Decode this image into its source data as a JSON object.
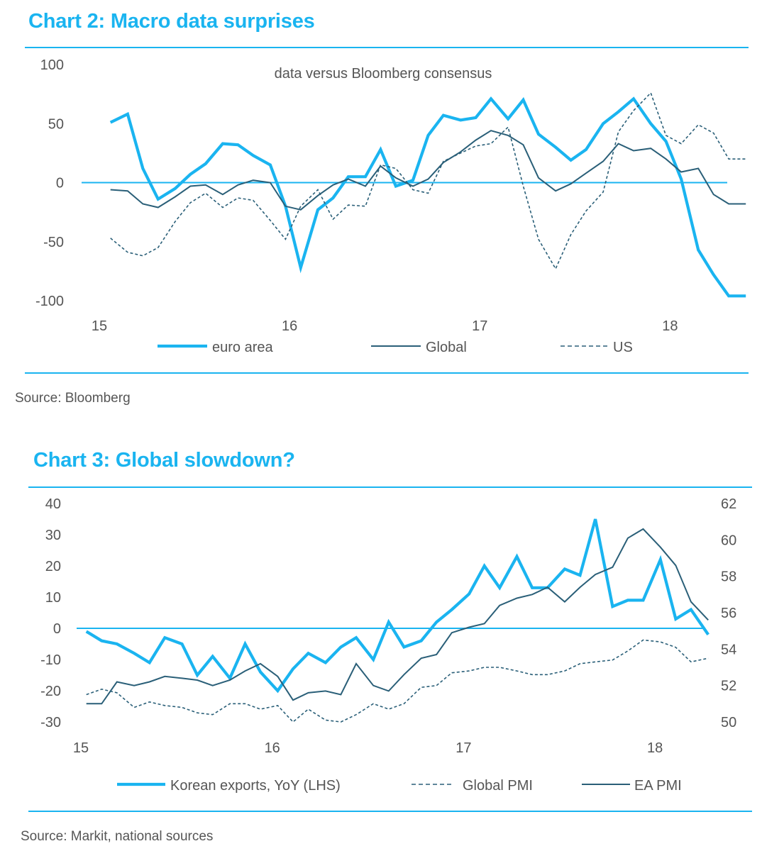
{
  "charts": [
    {
      "heading": "Chart 2: Macro data surprises",
      "source": "Source: Bloomberg"
    },
    {
      "heading": "Chart 3: Global slowdown?",
      "source": "Source:  Markit, national sources"
    }
  ],
  "colors": {
    "accent": "#1ab4f0",
    "dark": "#2a5f78",
    "text": "#555555"
  },
  "chart_data": [
    {
      "type": "line",
      "title": "Chart 2: Macro data surprises",
      "subtitle": "data versus Bloomberg consensus",
      "xlabel": "",
      "ylabel": "",
      "x_range": [
        15,
        18.45
      ],
      "ylim": [
        -100,
        100
      ],
      "y_ticks": [
        100,
        50,
        0,
        -50,
        -100
      ],
      "x_ticks": [
        15,
        16,
        17,
        18
      ],
      "x_tick_labels": [
        "15",
        "16",
        "17",
        "18"
      ],
      "legend": "bottom",
      "series": [
        {
          "name": "euro area",
          "style": "thick-light",
          "x": [
            15.04,
            15.13,
            15.21,
            15.29,
            15.38,
            15.46,
            15.54,
            15.63,
            15.71,
            15.79,
            15.88,
            15.96,
            16.04,
            16.13,
            16.21,
            16.29,
            16.38,
            16.46,
            16.54,
            16.63,
            16.71,
            16.79,
            16.88,
            16.96,
            17.04,
            17.13,
            17.21,
            17.29,
            17.38,
            17.46,
            17.54,
            17.63,
            17.71,
            17.79,
            17.88,
            17.96,
            18.04,
            18.13,
            18.21,
            18.29,
            18.38
          ],
          "y": [
            51,
            58,
            12,
            -14,
            -5,
            7,
            16,
            33,
            32,
            23,
            15,
            -20,
            -72,
            -23,
            -13,
            5,
            5,
            28,
            -3,
            2,
            40,
            57,
            53,
            55,
            71,
            54,
            70,
            41,
            30,
            19,
            28,
            50,
            60,
            71,
            50,
            35,
            3,
            -57,
            -78,
            -96,
            -96
          ]
        },
        {
          "name": "Global",
          "style": "solid-dark",
          "x": [
            15.04,
            15.13,
            15.21,
            15.29,
            15.38,
            15.46,
            15.54,
            15.63,
            15.71,
            15.79,
            15.88,
            15.96,
            16.04,
            16.13,
            16.21,
            16.29,
            16.38,
            16.46,
            16.54,
            16.63,
            16.71,
            16.79,
            16.88,
            16.96,
            17.04,
            17.13,
            17.21,
            17.29,
            17.38,
            17.46,
            17.54,
            17.63,
            17.71,
            17.79,
            17.88,
            17.96,
            18.04,
            18.13,
            18.21,
            18.29,
            18.38
          ],
          "y": [
            -6,
            -7,
            -18,
            -21,
            -12,
            -3,
            -2,
            -10,
            -2,
            2,
            0,
            -20,
            -23,
            -11,
            -2,
            3,
            -3,
            14,
            4,
            -3,
            3,
            17,
            26,
            36,
            44,
            40,
            32,
            4,
            -7,
            -1,
            8,
            18,
            33,
            27,
            29,
            20,
            9,
            12,
            -10,
            -18,
            -18
          ]
        },
        {
          "name": "US",
          "style": "dashed-dark",
          "x": [
            15.04,
            15.13,
            15.21,
            15.29,
            15.38,
            15.46,
            15.54,
            15.63,
            15.71,
            15.79,
            15.88,
            15.96,
            16.04,
            16.13,
            16.21,
            16.29,
            16.38,
            16.46,
            16.54,
            16.63,
            16.71,
            16.79,
            16.88,
            16.96,
            17.04,
            17.13,
            17.21,
            17.29,
            17.38,
            17.46,
            17.54,
            17.63,
            17.71,
            17.79,
            17.88,
            17.96,
            18.04,
            18.13,
            18.21,
            18.29,
            18.38
          ],
          "y": [
            -47,
            -59,
            -62,
            -55,
            -33,
            -17,
            -9,
            -21,
            -13,
            -15,
            -32,
            -48,
            -20,
            -6,
            -31,
            -19,
            -20,
            15,
            12,
            -6,
            -9,
            18,
            25,
            31,
            33,
            47,
            -3,
            -48,
            -73,
            -44,
            -24,
            -8,
            43,
            61,
            76,
            40,
            33,
            49,
            42,
            20,
            20
          ]
        }
      ]
    },
    {
      "type": "line",
      "title": "Chart 3: Global slowdown?",
      "xlabel": "",
      "ylabel": "",
      "x_range": [
        15,
        18.3
      ],
      "ylim": [
        -30,
        40
      ],
      "ylim_right": [
        50,
        62
      ],
      "y_ticks": [
        40,
        30,
        20,
        10,
        0,
        -10,
        -20,
        -30
      ],
      "y_ticks_right": [
        62,
        60,
        58,
        56,
        54,
        52,
        50
      ],
      "x_ticks": [
        15,
        16,
        17,
        18
      ],
      "x_tick_labels": [
        "15",
        "16",
        "17",
        "18"
      ],
      "legend": "bottom",
      "series": [
        {
          "name": "Korean exports, YoY (LHS)",
          "style": "thick-light",
          "axis": "left",
          "x": [
            15.01,
            15.09,
            15.17,
            15.26,
            15.34,
            15.42,
            15.51,
            15.59,
            15.67,
            15.76,
            15.84,
            15.92,
            16.01,
            16.09,
            16.17,
            16.26,
            16.34,
            16.42,
            16.51,
            16.59,
            16.67,
            16.76,
            16.84,
            16.92,
            17.01,
            17.09,
            17.17,
            17.26,
            17.34,
            17.42,
            17.51,
            17.59,
            17.67,
            17.76,
            17.84,
            17.92,
            18.01,
            18.09,
            18.17,
            18.26
          ],
          "y": [
            -1,
            -4,
            -5,
            -8,
            -11,
            -3,
            -5,
            -15,
            -9,
            -16,
            -5,
            -14,
            -20,
            -13,
            -8,
            -11,
            -6,
            -3,
            -10,
            2,
            -6,
            -4,
            2,
            6,
            11,
            20,
            13,
            23,
            13,
            13,
            19,
            17,
            35,
            7,
            9,
            9,
            22,
            3,
            6,
            -2
          ]
        },
        {
          "name": "Global PMI",
          "style": "dashed-dark",
          "axis": "right",
          "x": [
            15.01,
            15.09,
            15.17,
            15.26,
            15.34,
            15.42,
            15.51,
            15.59,
            15.67,
            15.76,
            15.84,
            15.92,
            16.01,
            16.09,
            16.17,
            16.26,
            16.34,
            16.42,
            16.51,
            16.59,
            16.67,
            16.76,
            16.84,
            16.92,
            17.01,
            17.09,
            17.17,
            17.26,
            17.34,
            17.42,
            17.51,
            17.59,
            17.67,
            17.76,
            17.84,
            17.92,
            18.01,
            18.09,
            18.17,
            18.26
          ],
          "y": [
            51.5,
            51.8,
            51.6,
            50.8,
            51.1,
            50.9,
            50.8,
            50.5,
            50.4,
            51.0,
            51.0,
            50.7,
            50.9,
            50.0,
            50.7,
            50.1,
            50.0,
            50.4,
            51.0,
            50.7,
            51.0,
            51.9,
            52.0,
            52.7,
            52.8,
            53.0,
            53.0,
            52.8,
            52.6,
            52.6,
            52.8,
            53.2,
            53.3,
            53.4,
            53.9,
            54.5,
            54.4,
            54.1,
            53.3,
            53.5
          ]
        },
        {
          "name": "EA PMI",
          "style": "solid-dark",
          "axis": "right",
          "x": [
            15.01,
            15.09,
            15.17,
            15.26,
            15.34,
            15.42,
            15.51,
            15.59,
            15.67,
            15.76,
            15.84,
            15.92,
            16.01,
            16.09,
            16.17,
            16.26,
            16.34,
            16.42,
            16.51,
            16.59,
            16.67,
            16.76,
            16.84,
            16.92,
            17.01,
            17.09,
            17.17,
            17.26,
            17.34,
            17.42,
            17.51,
            17.59,
            17.67,
            17.76,
            17.84,
            17.92,
            18.01,
            18.09,
            18.17,
            18.26
          ],
          "y": [
            51.0,
            51.0,
            52.2,
            52.0,
            52.2,
            52.5,
            52.4,
            52.3,
            52.0,
            52.3,
            52.8,
            53.2,
            52.5,
            51.2,
            51.6,
            51.7,
            51.5,
            53.2,
            52.0,
            51.7,
            52.6,
            53.5,
            53.7,
            54.9,
            55.2,
            55.4,
            56.4,
            56.8,
            57.0,
            57.4,
            56.6,
            57.4,
            58.1,
            58.5,
            60.1,
            60.6,
            59.6,
            58.6,
            56.6,
            55.6
          ]
        }
      ]
    }
  ]
}
